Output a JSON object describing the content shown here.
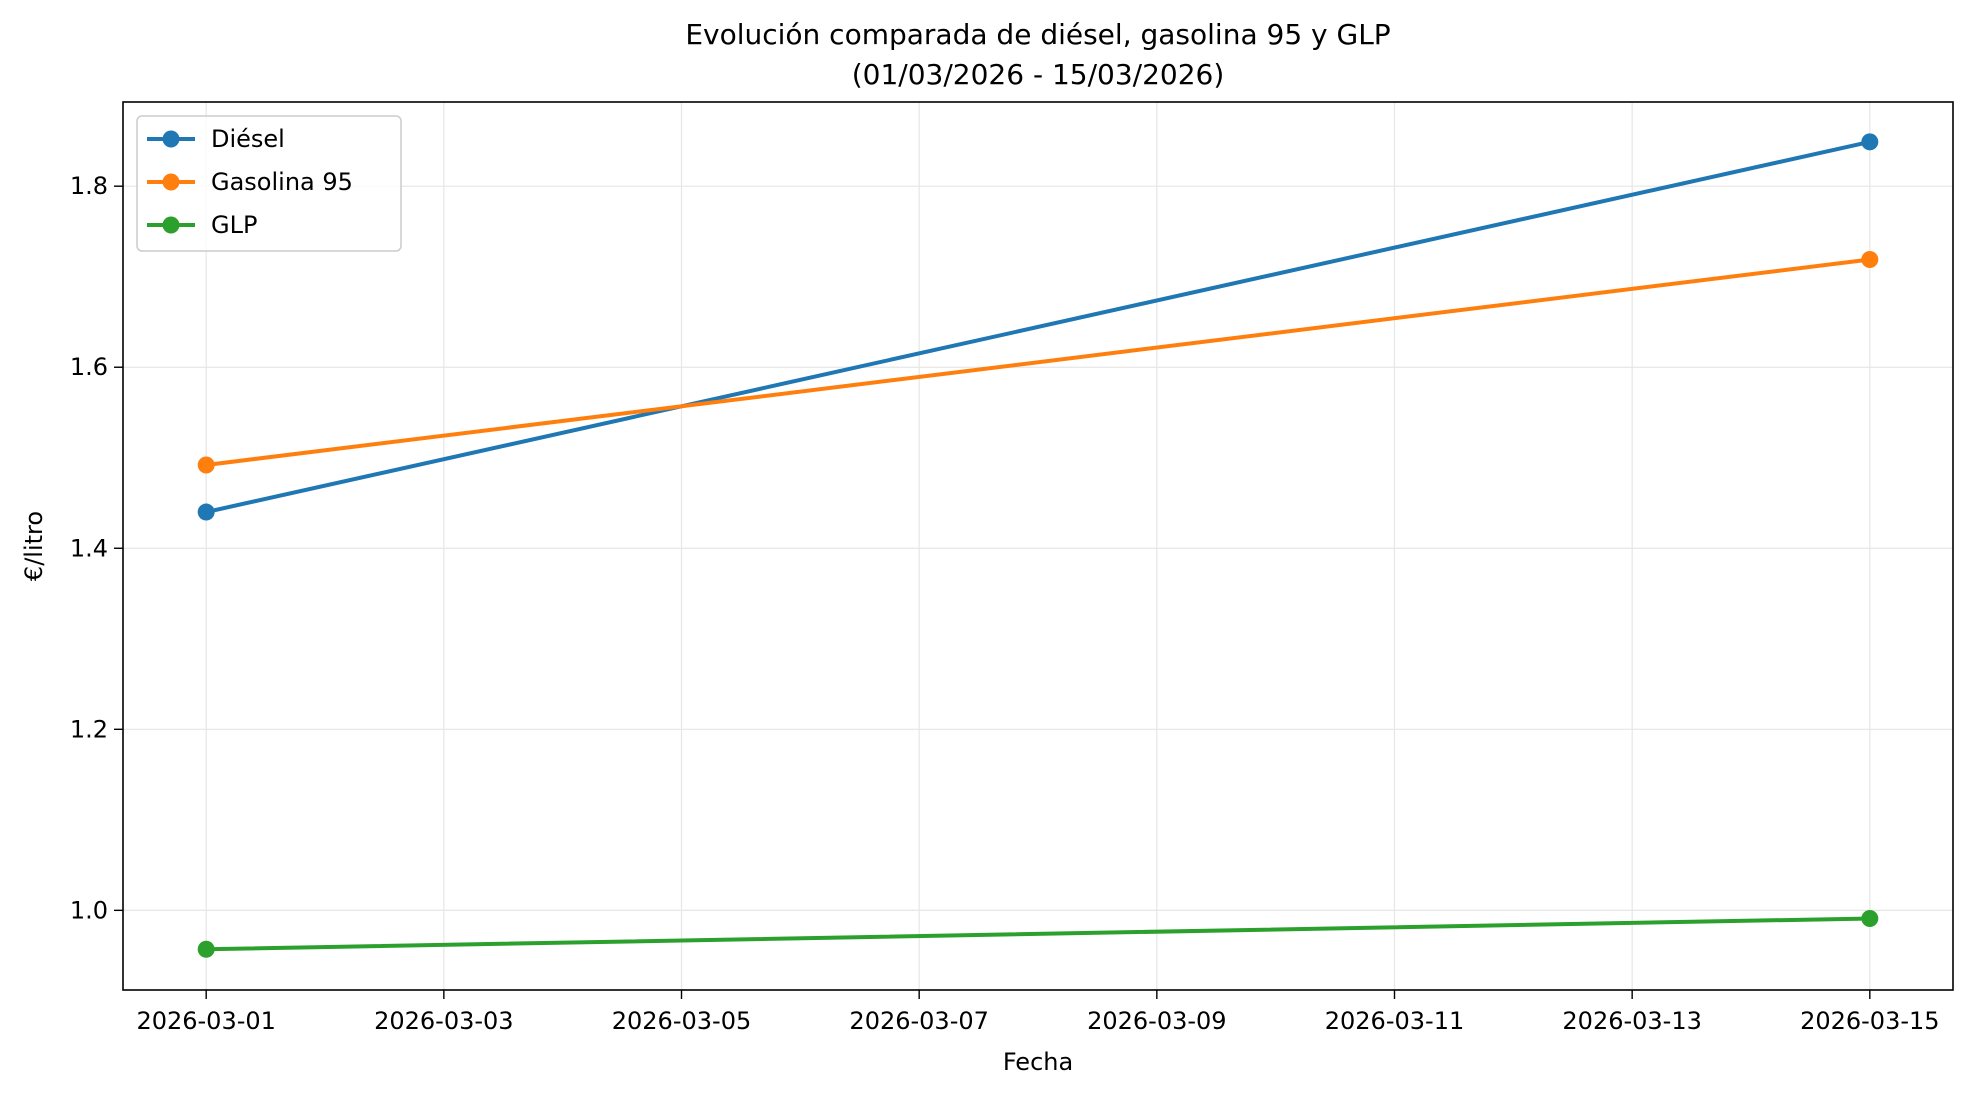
{
  "chart_data": {
    "type": "line",
    "title_line1": "Evolución comparada de diésel, gasolina 95 y GLP",
    "title_line2": "(01/03/2026 - 15/03/2026)",
    "xlabel": "Fecha",
    "ylabel": "€/litro",
    "x": [
      "2026-03-01",
      "2026-03-15"
    ],
    "x_ticks": [
      "2026-03-01",
      "2026-03-03",
      "2026-03-05",
      "2026-03-07",
      "2026-03-09",
      "2026-03-11",
      "2026-03-13",
      "2026-03-15"
    ],
    "y_ticks": [
      "1.0",
      "1.2",
      "1.4",
      "1.6",
      "1.8"
    ],
    "xlim": [
      "2026-02-28T07:12",
      "2026-03-15T16:48"
    ],
    "ylim": [
      0.912,
      1.893
    ],
    "grid": true,
    "legend_position": "upper-left",
    "series": [
      {
        "name": "Diésel",
        "color": "#1f77b4",
        "values": [
          1.44,
          1.849
        ]
      },
      {
        "name": "Gasolina 95",
        "color": "#ff7f0e",
        "values": [
          1.492,
          1.719
        ]
      },
      {
        "name": "GLP",
        "color": "#2ca02c",
        "values": [
          0.957,
          0.991
        ]
      }
    ]
  }
}
